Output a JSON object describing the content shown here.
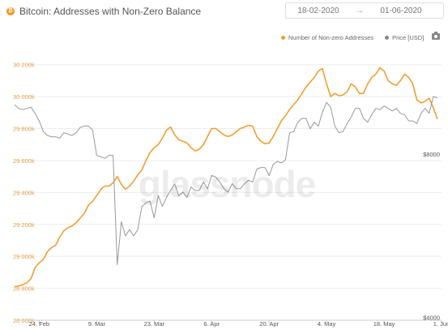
{
  "header": {
    "title": "Bitcoin: Addresses with Non-Zero Balance",
    "coin_glyph": "₿"
  },
  "date_range": {
    "start": "18-02-2020",
    "arrow": "→",
    "end": "01-06-2020"
  },
  "watermark": "glassnode",
  "icons": {
    "coin": "bitcoin-icon",
    "camera": "camera-icon"
  },
  "colors": {
    "addresses": "#f29f33",
    "price": "#999999",
    "grid": "#eeeeee",
    "axis_text": "#e8a04a"
  },
  "chart_data": {
    "type": "line",
    "title": "Bitcoin: Addresses with Non-Zero Balance",
    "x_ticks": [
      "24. Feb",
      "9. Mar",
      "23. Mar",
      "6. Apr",
      "20. Apr",
      "4. May",
      "18. May",
      "1. Jun"
    ],
    "x_tick_days": [
      6,
      20,
      34,
      48,
      62,
      76,
      90,
      104
    ],
    "x_range_days": [
      0,
      104
    ],
    "y_left": {
      "ticks": [
        "28 600k",
        "28 800k",
        "29 000k",
        "29 200k",
        "29 400k",
        "29 600k",
        "29 800k",
        "30 000k",
        "30 200k"
      ],
      "range": [
        28600,
        30300
      ],
      "unit": "k"
    },
    "y_right": {
      "ticks": [
        "$4000",
        "$8000"
      ],
      "tick_values": [
        4000,
        8000
      ],
      "scale": "log",
      "range": [
        3950,
        12500
      ]
    },
    "legend_position": "top-right",
    "grid": true,
    "series": [
      {
        "name": "Number of Non-zero Addresses",
        "axis": "left",
        "x": [
          0,
          1,
          2,
          3,
          4,
          5,
          6,
          7,
          8,
          9,
          10,
          11,
          12,
          13,
          14,
          15,
          16,
          17,
          18,
          19,
          20,
          21,
          22,
          23,
          24,
          25,
          26,
          27,
          28,
          29,
          30,
          31,
          32,
          33,
          34,
          35,
          36,
          37,
          38,
          39,
          40,
          41,
          42,
          43,
          44,
          45,
          46,
          47,
          48,
          49,
          50,
          51,
          52,
          53,
          54,
          55,
          56,
          57,
          58,
          59,
          60,
          61,
          62,
          63,
          64,
          65,
          66,
          67,
          68,
          69,
          70,
          71,
          72,
          73,
          74,
          75,
          76,
          77,
          78,
          79,
          80,
          81,
          82,
          83,
          84,
          85,
          86,
          87,
          88,
          89,
          90,
          91,
          92,
          93,
          94,
          95,
          96,
          97,
          98,
          99,
          100,
          101,
          102,
          103
        ],
        "values": [
          28810,
          28815,
          28822,
          28835,
          28860,
          28930,
          28960,
          28980,
          29030,
          29055,
          29070,
          29120,
          29160,
          29180,
          29190,
          29210,
          29240,
          29270,
          29320,
          29345,
          29380,
          29420,
          29440,
          29440,
          29460,
          29500,
          29450,
          29420,
          29440,
          29470,
          29510,
          29540,
          29600,
          29650,
          29680,
          29700,
          29740,
          29790,
          29810,
          29760,
          29730,
          29720,
          29710,
          29680,
          29660,
          29670,
          29700,
          29750,
          29800,
          29800,
          29780,
          29760,
          29750,
          29760,
          29780,
          29800,
          29810,
          29820,
          29815,
          29750,
          29720,
          29705,
          29710,
          29750,
          29800,
          29850,
          29880,
          29920,
          29950,
          29980,
          30020,
          30060,
          30090,
          30120,
          30160,
          30175,
          30080,
          30000,
          30020,
          30005,
          30010,
          30030,
          30080,
          30060,
          30020,
          30020,
          30080,
          30120,
          30140,
          30180,
          30160,
          30100,
          30080,
          30070,
          30100,
          30140,
          30120,
          30080,
          29980,
          29960,
          29970,
          29990,
          29930,
          29860
        ]
      },
      {
        "name": "Price [USD]",
        "axis": "right",
        "x": [
          0,
          1,
          2,
          3,
          4,
          5,
          6,
          7,
          8,
          9,
          10,
          11,
          12,
          13,
          14,
          15,
          16,
          17,
          18,
          19,
          20,
          21,
          22,
          23,
          24,
          25,
          26,
          27,
          28,
          29,
          30,
          31,
          32,
          33,
          34,
          35,
          36,
          37,
          38,
          39,
          40,
          41,
          42,
          43,
          44,
          45,
          46,
          47,
          48,
          49,
          50,
          51,
          52,
          53,
          54,
          55,
          56,
          57,
          58,
          59,
          60,
          61,
          62,
          63,
          64,
          65,
          66,
          67,
          68,
          69,
          70,
          71,
          72,
          73,
          74,
          75,
          76,
          77,
          78,
          79,
          80,
          81,
          82,
          83,
          84,
          85,
          86,
          87,
          88,
          89,
          90,
          91,
          92,
          93,
          94,
          95,
          96,
          97,
          98,
          99,
          100,
          101,
          102,
          103
        ],
        "values": [
          9850,
          9700,
          9650,
          9700,
          9750,
          9500,
          9200,
          8800,
          8650,
          8600,
          8600,
          8550,
          8750,
          8700,
          8650,
          8750,
          8950,
          9000,
          9000,
          8850,
          7950,
          7900,
          7850,
          7950,
          7950,
          5000,
          6000,
          5650,
          5800,
          5650,
          5800,
          6400,
          6500,
          6550,
          6100,
          6700,
          6400,
          6650,
          6850,
          7050,
          6700,
          6800,
          6650,
          6950,
          6850,
          6850,
          7100,
          6900,
          7300,
          7250,
          7100,
          6900,
          6800,
          7050,
          6900,
          6900,
          7050,
          7150,
          7100,
          7500,
          7550,
          7550,
          7300,
          7650,
          7750,
          7700,
          7800,
          8750,
          8800,
          9150,
          9300,
          9300,
          8900,
          9150,
          9000,
          9550,
          9950,
          9750,
          9000,
          8750,
          8800,
          9100,
          9350,
          9700,
          9700,
          9300,
          9150,
          9450,
          9700,
          9650,
          9800,
          9700,
          9600,
          9700,
          9500,
          9450,
          9200,
          9200,
          9100,
          9500,
          9700,
          9500,
          10200,
          10150
        ]
      }
    ]
  }
}
